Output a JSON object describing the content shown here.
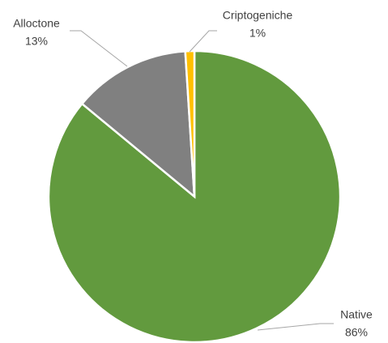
{
  "chart_data": {
    "type": "pie",
    "categories": [
      "Native",
      "Alloctone",
      "Criptogeniche"
    ],
    "values": [
      86,
      13,
      1
    ],
    "value_labels": [
      "86%",
      "13%",
      "1%"
    ],
    "colors": [
      "#629a3e",
      "#808080",
      "#ffc000"
    ]
  }
}
